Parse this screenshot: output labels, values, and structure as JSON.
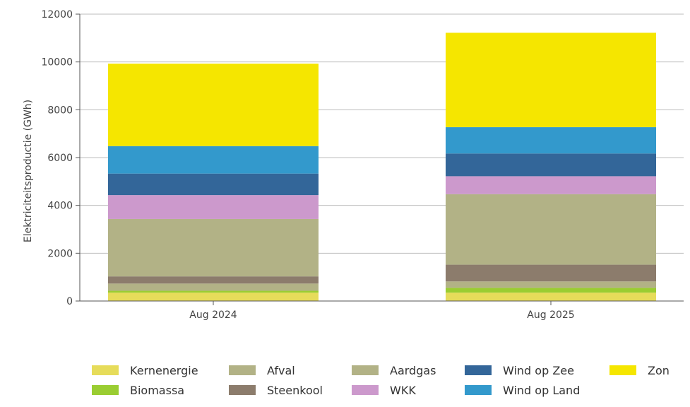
{
  "chart_data": {
    "type": "bar",
    "stacked": true,
    "categories": [
      "Aug 2024",
      "Aug 2025"
    ],
    "ylabel": "Elektriciteitsproductie (GWh)",
    "ylim": [
      0,
      12000
    ],
    "yticks": [
      "0",
      "2000",
      "4000",
      "6000",
      "8000",
      "10000",
      "12000"
    ],
    "grid": "horizontal",
    "legend_position": "bottom",
    "series": [
      {
        "name": "Kernenergie",
        "color": "#e6dc5a",
        "values": [
          350,
          350
        ]
      },
      {
        "name": "Biomassa",
        "color": "#9acd32",
        "values": [
          80,
          200
        ]
      },
      {
        "name": "Afval",
        "color": "#b2b286",
        "values": [
          300,
          270
        ]
      },
      {
        "name": "Steenkool",
        "color": "#8c7c6c",
        "values": [
          300,
          700
        ]
      },
      {
        "name": "Aardgas",
        "color": "#b2b286",
        "values": [
          2400,
          2950
        ]
      },
      {
        "name": "WKK",
        "color": "#cc99cc",
        "values": [
          1000,
          750
        ]
      },
      {
        "name": "Wind op Zee",
        "color": "#336699",
        "values": [
          900,
          950
        ]
      },
      {
        "name": "Wind op Land",
        "color": "#3399cc",
        "values": [
          1150,
          1100
        ]
      },
      {
        "name": "Zon",
        "color": "#f5e600",
        "values": [
          3450,
          3950
        ]
      }
    ]
  }
}
